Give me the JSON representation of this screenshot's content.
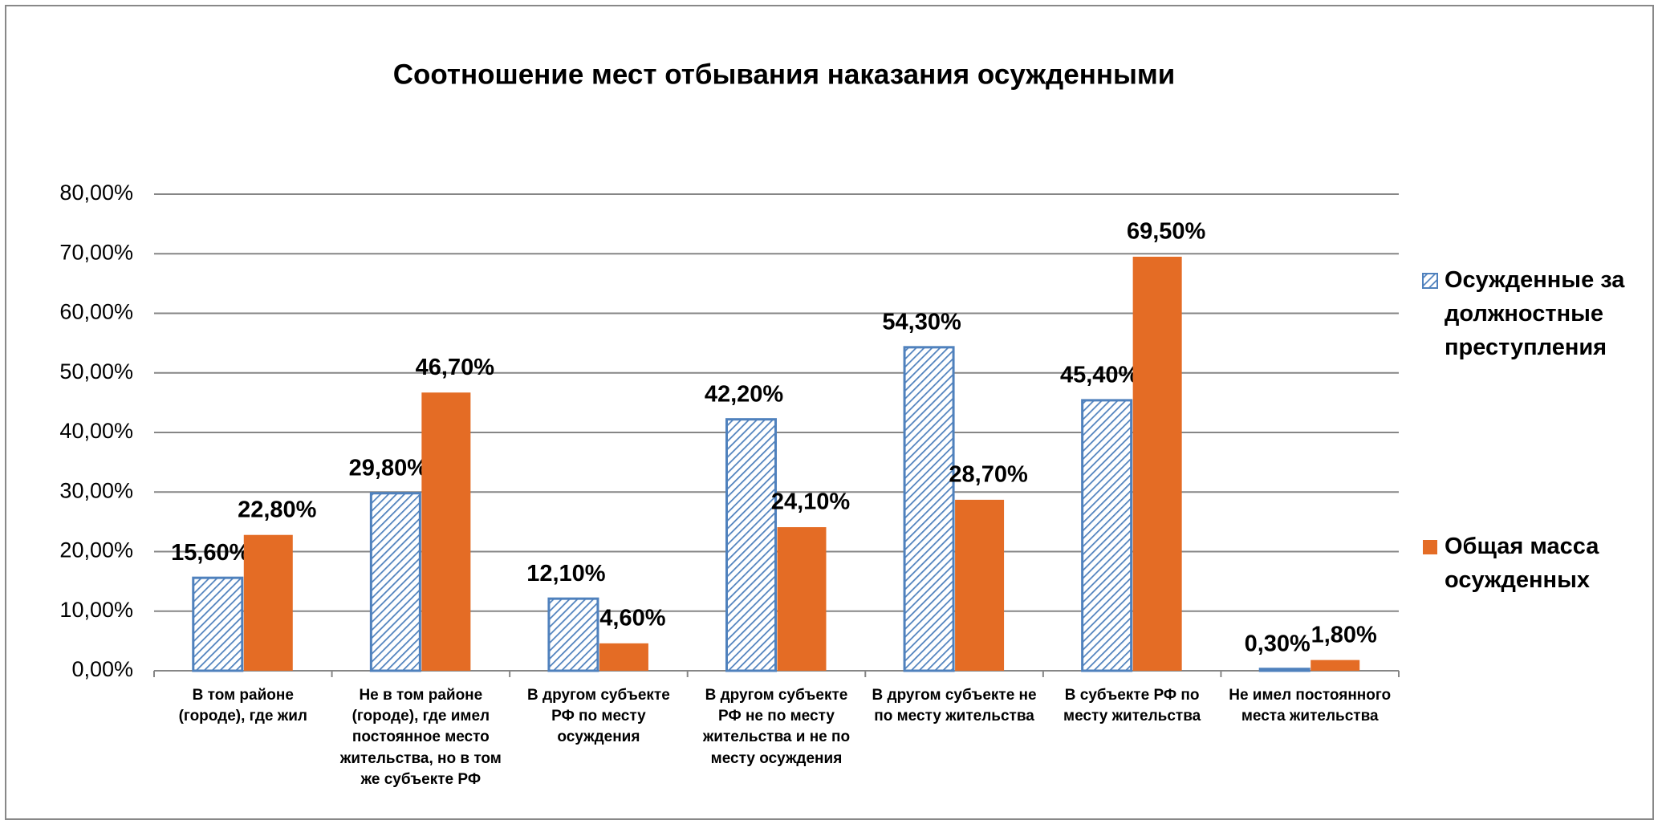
{
  "chart_data": {
    "type": "bar",
    "title": "Соотношение мест отбывания наказания осужденными",
    "categories": [
      "В том районе (городе), где жил",
      "Не в том районе (городе), где имел постоянное место жительства, но в том же субъекте РФ",
      "В другом субъекте РФ по месту осуждения",
      "В другом субъекте РФ не по месту жительства и не по месту осуждения",
      "В другом субъекте не по месту жительства",
      "В субъекте РФ по месту жительства",
      "Не имел постоянного места жительства"
    ],
    "series": [
      {
        "name": "Осужденные за должностные преступления",
        "color": "#4f81bd",
        "pattern": "diagonal-hatch",
        "values": [
          15.6,
          29.8,
          12.1,
          42.2,
          54.3,
          45.4,
          0.3
        ],
        "value_labels": [
          "15,60%",
          "29,80%",
          "12,10%",
          "42,20%",
          "54,30%",
          "45,40%",
          "0,30%"
        ]
      },
      {
        "name": "Общая масса осужденных",
        "color": "#e46c25",
        "values": [
          22.8,
          46.7,
          4.6,
          24.1,
          28.7,
          69.5,
          1.8
        ],
        "value_labels": [
          "22,80%",
          "46,70%",
          "4,60%",
          "24,10%",
          "28,70%",
          "69,50%",
          "1,80%"
        ]
      }
    ],
    "ylim": [
      0,
      80
    ],
    "yticks": [
      {
        "value": 0,
        "label": "0,00%"
      },
      {
        "value": 10,
        "label": "10,00%"
      },
      {
        "value": 20,
        "label": "20,00%"
      },
      {
        "value": 30,
        "label": "30,00%"
      },
      {
        "value": 40,
        "label": "40,00%"
      },
      {
        "value": 50,
        "label": "50,00%"
      },
      {
        "value": 60,
        "label": "60,00%"
      },
      {
        "value": 70,
        "label": "70,00%"
      },
      {
        "value": 80,
        "label": "80,00%"
      }
    ],
    "grid": true,
    "legend": "right"
  }
}
